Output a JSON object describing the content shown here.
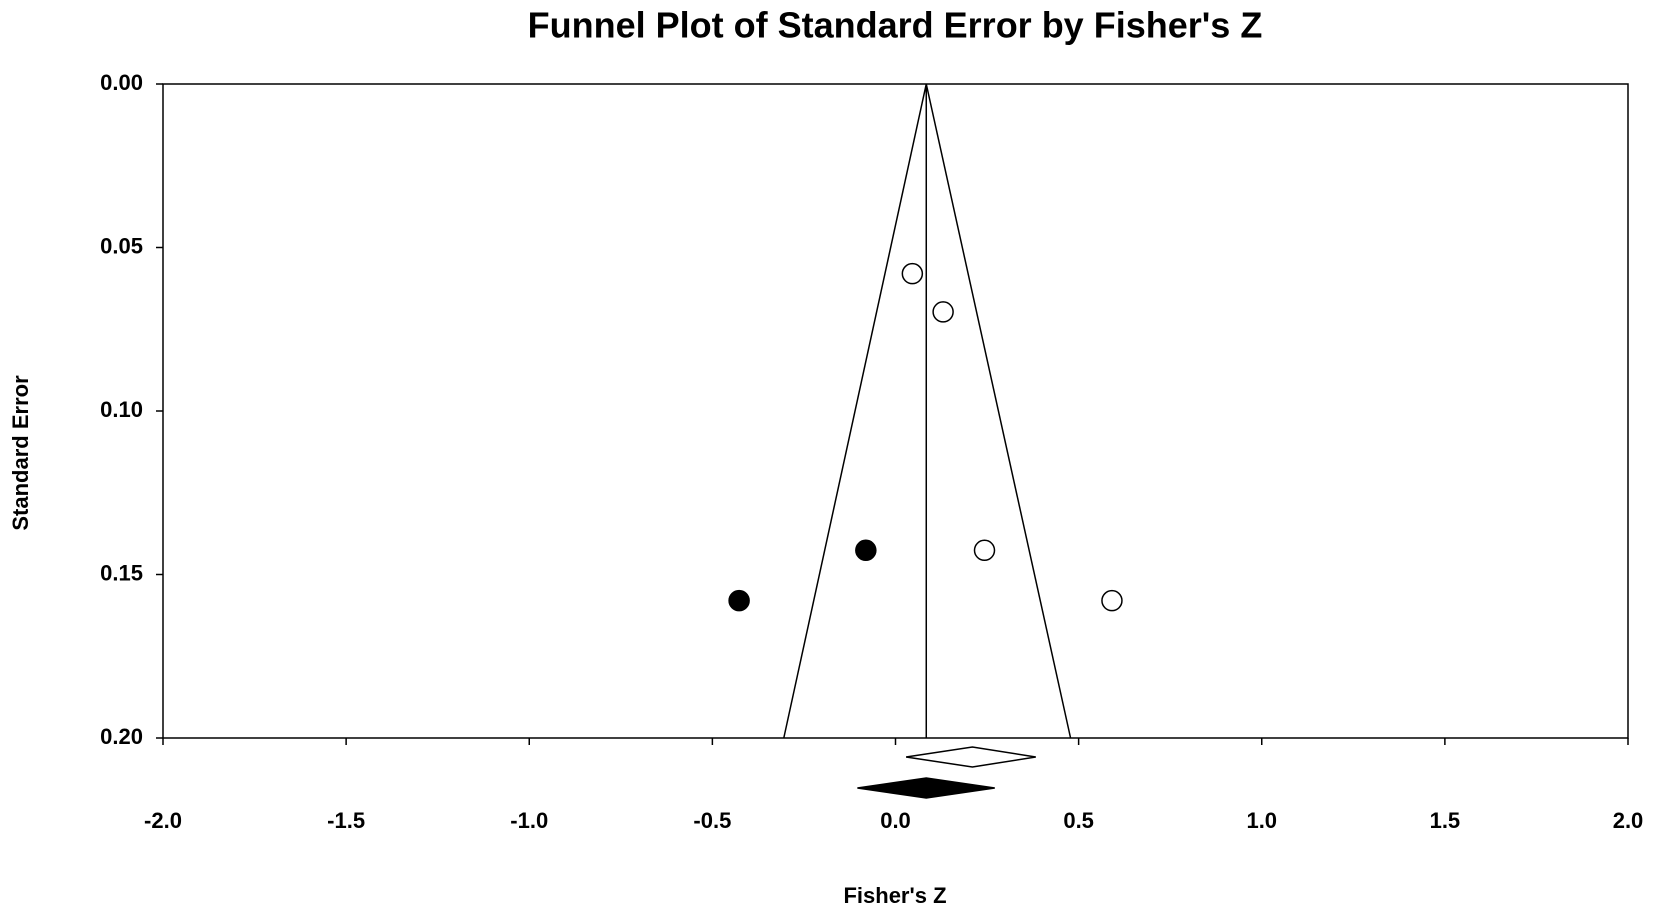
{
  "chart_data": {
    "type": "funnel",
    "title": "Funnel Plot of Standard Error by Fisher's Z",
    "x_label": "Fisher's Z",
    "y_label": "Standard Error",
    "xlim": [
      -2.0,
      2.0
    ],
    "ylim": [
      0.2,
      0.0
    ],
    "y_inverted": true,
    "xticks": [
      {
        "value": -2.0,
        "label": "-2.0"
      },
      {
        "value": -1.5,
        "label": "-1.5"
      },
      {
        "value": -1.0,
        "label": "-1.0"
      },
      {
        "value": -0.5,
        "label": "-0.5"
      },
      {
        "value": 0.0,
        "label": "0.0"
      },
      {
        "value": 0.5,
        "label": "0.5"
      },
      {
        "value": 1.0,
        "label": "1.0"
      },
      {
        "value": 1.5,
        "label": "1.5"
      },
      {
        "value": 2.0,
        "label": "2.0"
      }
    ],
    "yticks": [
      {
        "value": 0.0,
        "label": "0.00"
      },
      {
        "value": 0.05,
        "label": "0.05"
      },
      {
        "value": 0.1,
        "label": "0.10"
      },
      {
        "value": 0.15,
        "label": "0.15"
      },
      {
        "value": 0.2,
        "label": "0.20"
      }
    ],
    "series": [
      {
        "color": "#000000",
        "filled": false,
        "x": [
          0.046,
          0.13,
          0.243,
          0.591
        ],
        "values": [
          0.058,
          0.0697,
          0.1426,
          0.158
        ]
      },
      {
        "color": "#000000",
        "filled": true,
        "x": [
          -0.081,
          -0.427
        ],
        "values": [
          0.1426,
          0.158
        ]
      }
    ],
    "funnel": {
      "apex": 0.084,
      "base": [
        -0.305,
        0.478
      ]
    },
    "summaries": [
      {
        "estimate": 0.21,
        "lower": 0.029,
        "upper": 0.383,
        "filled": false
      },
      {
        "estimate": 0.084,
        "lower": -0.104,
        "upper": 0.271,
        "filled": true
      }
    ]
  }
}
